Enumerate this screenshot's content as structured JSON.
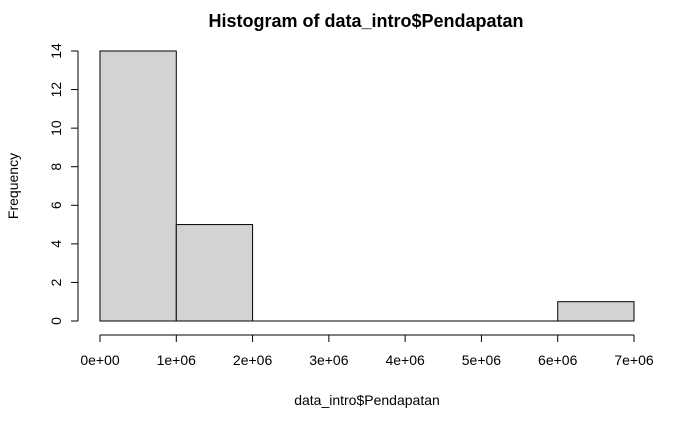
{
  "chart_data": {
    "type": "bar",
    "title": "Histogram of data_intro$Pendapatan",
    "xlabel": "data_intro$Pendapatan",
    "ylabel": "Frequency",
    "xlim": [
      0,
      7000000
    ],
    "ylim": [
      0,
      14
    ],
    "bins": [
      {
        "start": 0,
        "end": 1000000,
        "count": 14
      },
      {
        "start": 1000000,
        "end": 2000000,
        "count": 5
      },
      {
        "start": 2000000,
        "end": 3000000,
        "count": 0
      },
      {
        "start": 3000000,
        "end": 4000000,
        "count": 0
      },
      {
        "start": 4000000,
        "end": 5000000,
        "count": 0
      },
      {
        "start": 5000000,
        "end": 6000000,
        "count": 0
      },
      {
        "start": 6000000,
        "end": 7000000,
        "count": 1
      }
    ],
    "x_ticks": [
      {
        "value": 0,
        "label": "0e+00"
      },
      {
        "value": 1000000,
        "label": "1e+06"
      },
      {
        "value": 2000000,
        "label": "2e+06"
      },
      {
        "value": 3000000,
        "label": "3e+06"
      },
      {
        "value": 4000000,
        "label": "4e+06"
      },
      {
        "value": 5000000,
        "label": "5e+06"
      },
      {
        "value": 6000000,
        "label": "6e+06"
      },
      {
        "value": 7000000,
        "label": "7e+06"
      }
    ],
    "y_ticks": [
      {
        "value": 0,
        "label": "0"
      },
      {
        "value": 2,
        "label": "2"
      },
      {
        "value": 4,
        "label": "4"
      },
      {
        "value": 6,
        "label": "6"
      },
      {
        "value": 8,
        "label": "8"
      },
      {
        "value": 10,
        "label": "10"
      },
      {
        "value": 12,
        "label": "12"
      },
      {
        "value": 14,
        "label": "14"
      }
    ],
    "grid": false,
    "bar_color": "#d3d3d3",
    "border_color": "#000000"
  }
}
